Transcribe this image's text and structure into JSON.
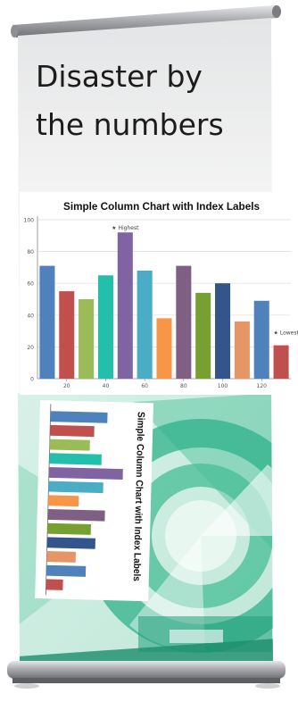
{
  "banner": {
    "headline_line1": "Disaster by",
    "headline_line2": "the numbers"
  },
  "colors": {
    "accent_green": "#2fb28a",
    "pale_green": "#cfeee3",
    "paper_grey": "#f0f0f0",
    "metal": "#8a8c90"
  },
  "chart_data": [
    {
      "type": "bar",
      "title": "Simple Column Chart with Index Labels",
      "xlabel": "",
      "ylabel": "",
      "ylim": [
        0,
        100
      ],
      "yticks": [
        0,
        20,
        40,
        60,
        80,
        100
      ],
      "xlim": [
        5,
        135
      ],
      "xticks": [
        20,
        40,
        60,
        80,
        100,
        120
      ],
      "x": [
        10,
        20,
        30,
        40,
        50,
        60,
        70,
        80,
        90,
        100,
        110,
        120,
        130
      ],
      "values": [
        71,
        55,
        50,
        65,
        92,
        68,
        38,
        71,
        54,
        60,
        36,
        49,
        21
      ],
      "colors": [
        "#4f81bc",
        "#c0504e",
        "#9bbb58",
        "#23bfaa",
        "#8064a1",
        "#4aacc5",
        "#f79647",
        "#7f6084",
        "#77a033",
        "#33558b",
        "#e59566",
        "#4f81bc",
        "#c0504e"
      ],
      "index_labels": [
        {
          "x": 50,
          "text": "Highest"
        },
        {
          "x": 130,
          "text": "Lowest"
        }
      ],
      "grid": true,
      "legend": "none"
    },
    {
      "type": "bar",
      "title": "Simple Column Chart with Index Labels",
      "orientation": "horizontal",
      "values": [
        71,
        55,
        50,
        65,
        92,
        68,
        38,
        71,
        54,
        60,
        36,
        49,
        21
      ],
      "colors": [
        "#4f81bc",
        "#c0504e",
        "#9bbb58",
        "#23bfaa",
        "#8064a1",
        "#4aacc5",
        "#f79647",
        "#7f6084",
        "#77a033",
        "#33558b",
        "#e59566",
        "#4f81bc",
        "#c0504e"
      ]
    }
  ]
}
